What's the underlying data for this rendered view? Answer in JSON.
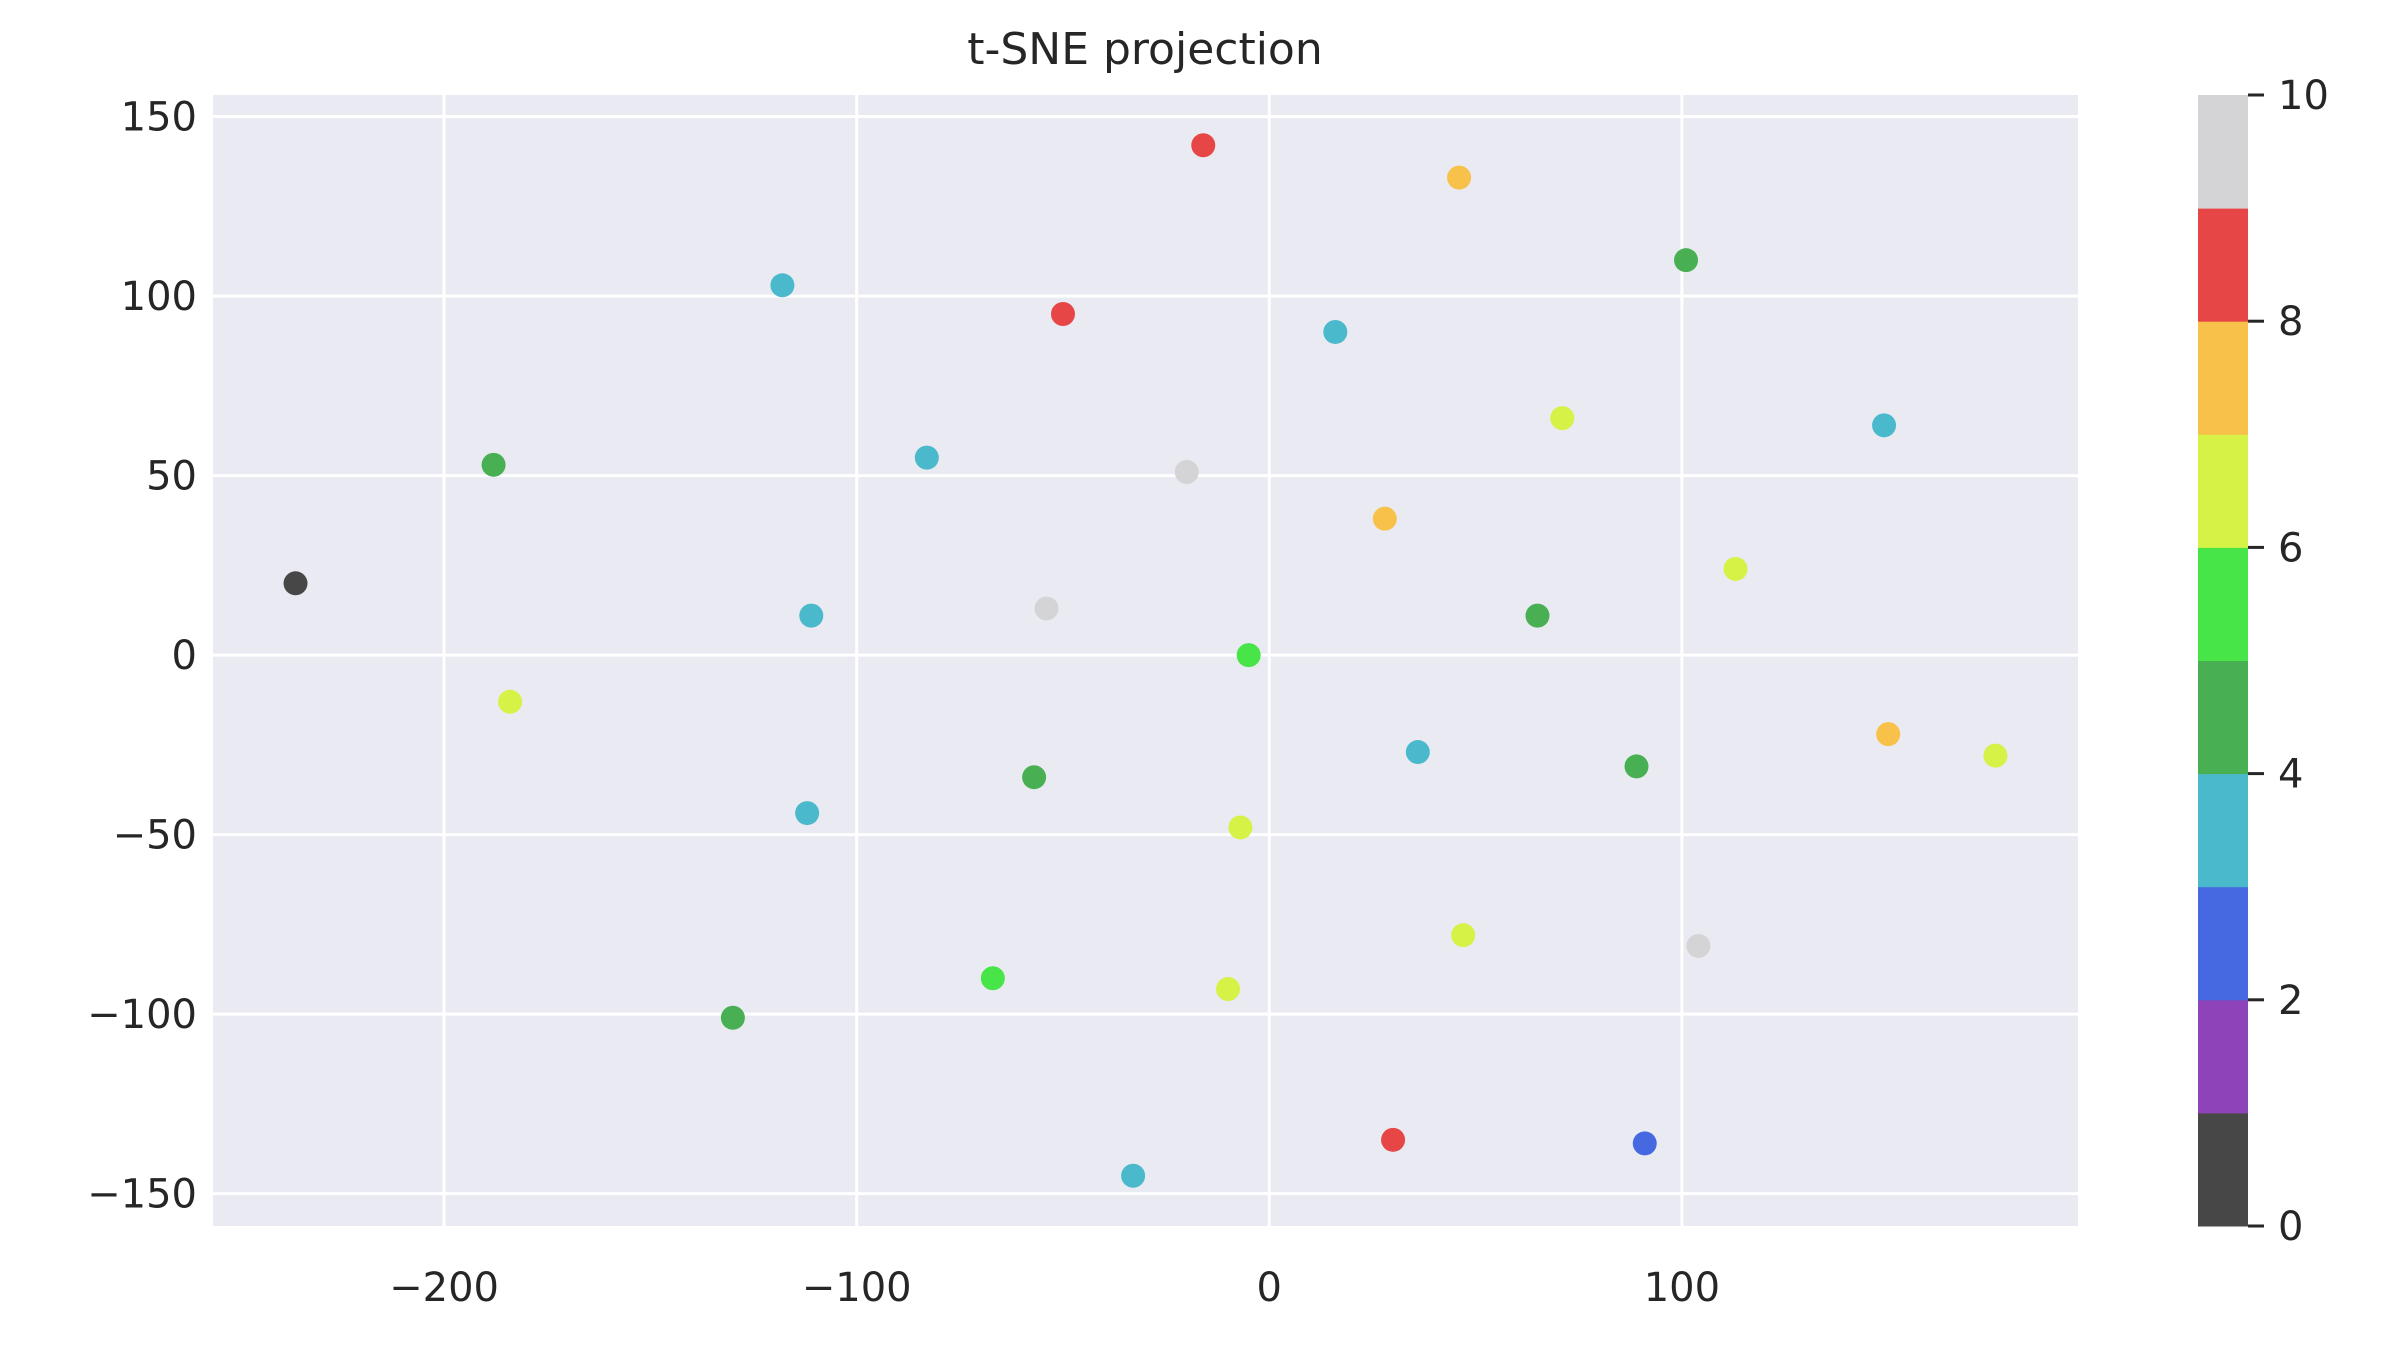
{
  "chart_data": {
    "type": "scatter",
    "title": "t-SNE projection",
    "xlabel": "",
    "ylabel": "",
    "xlim": [
      -256,
      196
    ],
    "ylim": [
      -159,
      156
    ],
    "xticks": [
      -200,
      -100,
      0,
      100
    ],
    "yticks": [
      -150,
      -100,
      -50,
      0,
      50,
      100,
      150
    ],
    "grid": true,
    "background_color": "#eaeaf2",
    "colorbar": {
      "range": [
        0,
        10
      ],
      "ticks": [
        0,
        2,
        4,
        6,
        8,
        10
      ],
      "colors": [
        "#474747",
        "#8e44b8",
        "#4668e0",
        "#4ab9cb",
        "#48b052",
        "#48e548",
        "#d6f247",
        "#f8c149",
        "#e64646",
        "#d4d4d6"
      ]
    },
    "points": [
      {
        "x": -236,
        "y": 20,
        "c": 0
      },
      {
        "x": -188,
        "y": 53,
        "c": 4
      },
      {
        "x": -184,
        "y": -13,
        "c": 6
      },
      {
        "x": -130,
        "y": -101,
        "c": 4
      },
      {
        "x": -118,
        "y": 103,
        "c": 3
      },
      {
        "x": -111,
        "y": 11,
        "c": 3
      },
      {
        "x": -112,
        "y": -44,
        "c": 3
      },
      {
        "x": -83,
        "y": 55,
        "c": 3
      },
      {
        "x": -67,
        "y": -90,
        "c": 5
      },
      {
        "x": -57,
        "y": -34,
        "c": 4
      },
      {
        "x": -54,
        "y": 13,
        "c": 9
      },
      {
        "x": -50,
        "y": 95,
        "c": 8
      },
      {
        "x": -33,
        "y": -145,
        "c": 3
      },
      {
        "x": -20,
        "y": 51,
        "c": 9
      },
      {
        "x": -16,
        "y": 142,
        "c": 8
      },
      {
        "x": -10,
        "y": -93,
        "c": 6
      },
      {
        "x": -7,
        "y": -48,
        "c": 6
      },
      {
        "x": -5,
        "y": 0,
        "c": 5
      },
      {
        "x": 16,
        "y": 90,
        "c": 3
      },
      {
        "x": 28,
        "y": 38,
        "c": 7
      },
      {
        "x": 30,
        "y": -135,
        "c": 8
      },
      {
        "x": 36,
        "y": -27,
        "c": 3
      },
      {
        "x": 46,
        "y": 133,
        "c": 7
      },
      {
        "x": 47,
        "y": -78,
        "c": 6
      },
      {
        "x": 65,
        "y": 11,
        "c": 4
      },
      {
        "x": 71,
        "y": 66,
        "c": 6
      },
      {
        "x": 89,
        "y": -31,
        "c": 4
      },
      {
        "x": 91,
        "y": -136,
        "c": 2
      },
      {
        "x": 101,
        "y": 110,
        "c": 4
      },
      {
        "x": 104,
        "y": -81,
        "c": 9
      },
      {
        "x": 113,
        "y": 24,
        "c": 6
      },
      {
        "x": 149,
        "y": 64,
        "c": 3
      },
      {
        "x": 150,
        "y": -22,
        "c": 7
      },
      {
        "x": 176,
        "y": -28,
        "c": 6
      }
    ]
  }
}
